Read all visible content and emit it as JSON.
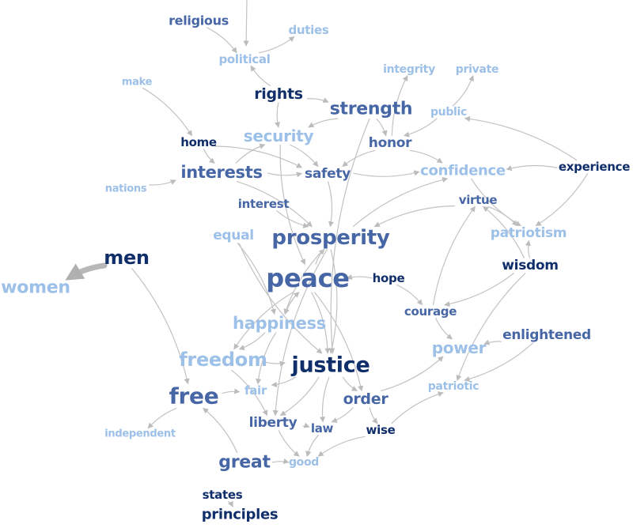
{
  "colors": {
    "dark": "#102e6a",
    "medium": "#4666a6",
    "light": "#9dc0e8",
    "edge": "#c2c2c2",
    "thick_edge": "#b8b8b8"
  },
  "nodes": [
    {
      "id": "religious",
      "label": "religious",
      "tone": "medium",
      "size": 16
    },
    {
      "id": "duties",
      "label": "duties",
      "tone": "light",
      "size": 15
    },
    {
      "id": "political",
      "label": "political",
      "tone": "light",
      "size": 15
    },
    {
      "id": "integrity",
      "label": "integrity",
      "tone": "light",
      "size": 14
    },
    {
      "id": "private",
      "label": "private",
      "tone": "light",
      "size": 14
    },
    {
      "id": "make",
      "label": "make",
      "tone": "light",
      "size": 13
    },
    {
      "id": "rights",
      "label": "rights",
      "tone": "dark",
      "size": 19
    },
    {
      "id": "strength",
      "label": "strength",
      "tone": "medium",
      "size": 22
    },
    {
      "id": "public",
      "label": "public",
      "tone": "light",
      "size": 14
    },
    {
      "id": "security",
      "label": "security",
      "tone": "light",
      "size": 20
    },
    {
      "id": "home",
      "label": "home",
      "tone": "dark",
      "size": 15
    },
    {
      "id": "honor",
      "label": "honor",
      "tone": "medium",
      "size": 17
    },
    {
      "id": "interests",
      "label": "interests",
      "tone": "medium",
      "size": 21
    },
    {
      "id": "safety",
      "label": "safety",
      "tone": "medium",
      "size": 17
    },
    {
      "id": "confidence",
      "label": "confidence",
      "tone": "light",
      "size": 18
    },
    {
      "id": "experience",
      "label": "experience",
      "tone": "dark",
      "size": 15
    },
    {
      "id": "nations",
      "label": "nations",
      "tone": "light",
      "size": 13
    },
    {
      "id": "interest",
      "label": "interest",
      "tone": "medium",
      "size": 15
    },
    {
      "id": "virtue",
      "label": "virtue",
      "tone": "medium",
      "size": 15
    },
    {
      "id": "equal",
      "label": "equal",
      "tone": "light",
      "size": 17
    },
    {
      "id": "prosperity",
      "label": "prosperity",
      "tone": "medium",
      "size": 26
    },
    {
      "id": "patriotism",
      "label": "patriotism",
      "tone": "light",
      "size": 17
    },
    {
      "id": "men",
      "label": "men",
      "tone": "dark",
      "size": 24
    },
    {
      "id": "wisdom",
      "label": "wisdom",
      "tone": "dark",
      "size": 17
    },
    {
      "id": "women",
      "label": "women",
      "tone": "light",
      "size": 22
    },
    {
      "id": "peace",
      "label": "peace",
      "tone": "medium",
      "size": 32
    },
    {
      "id": "hope",
      "label": "hope",
      "tone": "dark",
      "size": 15
    },
    {
      "id": "courage",
      "label": "courage",
      "tone": "medium",
      "size": 15
    },
    {
      "id": "happiness",
      "label": "happiness",
      "tone": "light",
      "size": 21
    },
    {
      "id": "enlightened",
      "label": "enlightened",
      "tone": "medium",
      "size": 17
    },
    {
      "id": "power",
      "label": "power",
      "tone": "light",
      "size": 20
    },
    {
      "id": "freedom",
      "label": "freedom",
      "tone": "light",
      "size": 24
    },
    {
      "id": "justice",
      "label": "justice",
      "tone": "dark",
      "size": 27
    },
    {
      "id": "patriotic",
      "label": "patriotic",
      "tone": "light",
      "size": 14
    },
    {
      "id": "free",
      "label": "free",
      "tone": "medium",
      "size": 28
    },
    {
      "id": "fair",
      "label": "fair",
      "tone": "light",
      "size": 15
    },
    {
      "id": "order",
      "label": "order",
      "tone": "medium",
      "size": 19
    },
    {
      "id": "liberty",
      "label": "liberty",
      "tone": "medium",
      "size": 17
    },
    {
      "id": "law",
      "label": "law",
      "tone": "medium",
      "size": 15
    },
    {
      "id": "wise",
      "label": "wise",
      "tone": "dark",
      "size": 15
    },
    {
      "id": "independent",
      "label": "independent",
      "tone": "light",
      "size": 13
    },
    {
      "id": "great",
      "label": "great",
      "tone": "medium",
      "size": 22
    },
    {
      "id": "good",
      "label": "good",
      "tone": "light",
      "size": 14
    },
    {
      "id": "states",
      "label": "states",
      "tone": "dark",
      "size": 15
    },
    {
      "id": "principles",
      "label": "principles",
      "tone": "dark",
      "size": 18
    }
  ],
  "edges": [
    [
      "religious",
      "political"
    ],
    [
      "political",
      "duties"
    ],
    [
      "rights",
      "political"
    ],
    [
      "rights",
      "security"
    ],
    [
      "rights",
      "strength"
    ],
    [
      "strength",
      "security"
    ],
    [
      "strength",
      "honor"
    ],
    [
      "strength",
      "justice"
    ],
    [
      "honor",
      "integrity"
    ],
    [
      "honor",
      "safety"
    ],
    [
      "honor",
      "confidence"
    ],
    [
      "public",
      "private"
    ],
    [
      "public",
      "honor"
    ],
    [
      "experience",
      "public"
    ],
    [
      "experience",
      "patriotism"
    ],
    [
      "experience",
      "confidence"
    ],
    [
      "home",
      "safety"
    ],
    [
      "home",
      "interests"
    ],
    [
      "make",
      "home"
    ],
    [
      "nations",
      "interests"
    ],
    [
      "interests",
      "security"
    ],
    [
      "interests",
      "safety"
    ],
    [
      "interests",
      "prosperity"
    ],
    [
      "interest",
      "prosperity"
    ],
    [
      "security",
      "safety"
    ],
    [
      "security",
      "peace"
    ],
    [
      "safety",
      "prosperity"
    ],
    [
      "safety",
      "confidence"
    ],
    [
      "virtue",
      "patriotism"
    ],
    [
      "virtue",
      "prosperity"
    ],
    [
      "wisdom",
      "patriotism"
    ],
    [
      "wisdom",
      "virtue"
    ],
    [
      "wisdom",
      "courage"
    ],
    [
      "wisdom",
      "patriotic"
    ],
    [
      "courage",
      "virtue"
    ],
    [
      "courage",
      "power"
    ],
    [
      "hope",
      "courage"
    ],
    [
      "hope",
      "peace"
    ],
    [
      "peace",
      "prosperity"
    ],
    [
      "peace",
      "happiness"
    ],
    [
      "peace",
      "justice"
    ],
    [
      "peace",
      "freedom"
    ],
    [
      "peace",
      "order"
    ],
    [
      "prosperity",
      "happiness"
    ],
    [
      "prosperity",
      "justice"
    ],
    [
      "prosperity",
      "liberty"
    ],
    [
      "equal",
      "happiness"
    ],
    [
      "equal",
      "justice"
    ],
    [
      "happiness",
      "freedom"
    ],
    [
      "happiness",
      "fair"
    ],
    [
      "freedom",
      "liberty"
    ],
    [
      "freedom",
      "justice"
    ],
    [
      "justice",
      "liberty"
    ],
    [
      "justice",
      "order"
    ],
    [
      "justice",
      "fair"
    ],
    [
      "justice",
      "law"
    ],
    [
      "men",
      "free"
    ],
    [
      "free",
      "independent"
    ],
    [
      "free",
      "fair"
    ],
    [
      "great",
      "free"
    ],
    [
      "great",
      "good"
    ],
    [
      "liberty",
      "good"
    ],
    [
      "liberty",
      "law"
    ],
    [
      "law",
      "good"
    ],
    [
      "order",
      "law"
    ],
    [
      "order",
      "power"
    ],
    [
      "wise",
      "patriotic"
    ],
    [
      "wise",
      "good"
    ],
    [
      "enlightened",
      "patriotic"
    ],
    [
      "enlightened",
      "power"
    ],
    [
      "states",
      "principles"
    ],
    [
      "order",
      "wise"
    ],
    [
      "happiness",
      "peace"
    ],
    [
      "confidence",
      "patriotism"
    ],
    [
      "prosperity",
      "confidence"
    ]
  ],
  "thick_edges": [
    [
      "men",
      "women"
    ]
  ]
}
